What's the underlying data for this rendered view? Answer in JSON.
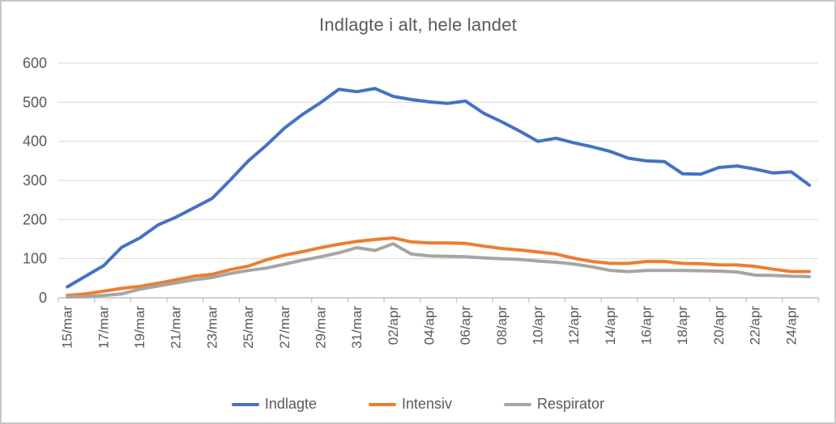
{
  "window": {
    "border_color": "#c6c6c6",
    "background": "#ffffff"
  },
  "chart_data": {
    "type": "line",
    "title": "Indlagte i alt, hele landet",
    "xlabel": "",
    "ylabel": "",
    "ylim": [
      0,
      600
    ],
    "yticks": [
      0,
      100,
      200,
      300,
      400,
      500,
      600
    ],
    "x_tick_label_interval": 2,
    "grid": "horizontal",
    "legend_position": "bottom",
    "grid_color": "#d9d9d9",
    "axis_color": "#bfbfbf",
    "text_color": "#595959",
    "categories": [
      "15/mar",
      "16/mar",
      "17/mar",
      "18/mar",
      "19/mar",
      "20/mar",
      "21/mar",
      "22/mar",
      "23/mar",
      "24/mar",
      "25/mar",
      "26/mar",
      "27/mar",
      "28/mar",
      "29/mar",
      "30/mar",
      "31/mar",
      "01/apr",
      "02/apr",
      "03/apr",
      "04/apr",
      "05/apr",
      "06/apr",
      "07/apr",
      "08/apr",
      "09/apr",
      "10/apr",
      "11/apr",
      "12/apr",
      "13/apr",
      "14/apr",
      "15/apr",
      "16/apr",
      "17/apr",
      "18/apr",
      "19/apr",
      "20/apr",
      "21/apr",
      "22/apr",
      "23/apr",
      "24/apr",
      "25/apr"
    ],
    "series": [
      {
        "name": "Indlagte",
        "color": "#4472C4",
        "values": [
          28,
          55,
          82,
          129,
          153,
          186,
          206,
          230,
          254,
          301,
          350,
          390,
          434,
          469,
          499,
          533,
          527,
          535,
          515,
          507,
          501,
          497,
          503,
          472,
          450,
          426,
          400,
          408,
          396,
          386,
          374,
          357,
          350,
          348,
          317,
          316,
          333,
          337,
          329,
          319,
          322,
          288
        ]
      },
      {
        "name": "Intensiv",
        "color": "#ED7D31",
        "values": [
          6,
          10,
          17,
          24,
          29,
          37,
          46,
          55,
          60,
          72,
          81,
          97,
          109,
          118,
          128,
          137,
          144,
          149,
          153,
          143,
          140,
          140,
          139,
          132,
          126,
          122,
          117,
          112,
          101,
          93,
          88,
          88,
          93,
          93,
          88,
          87,
          84,
          84,
          80,
          73,
          67,
          67
        ]
      },
      {
        "name": "Respirator",
        "color": "#A5A5A5",
        "values": [
          2,
          3,
          6,
          10,
          22,
          30,
          38,
          46,
          52,
          62,
          70,
          76,
          86,
          96,
          105,
          115,
          128,
          121,
          138,
          112,
          107,
          106,
          105,
          102,
          100,
          98,
          94,
          91,
          86,
          79,
          70,
          67,
          70,
          70,
          70,
          69,
          68,
          66,
          58,
          57,
          55,
          54
        ]
      }
    ]
  }
}
